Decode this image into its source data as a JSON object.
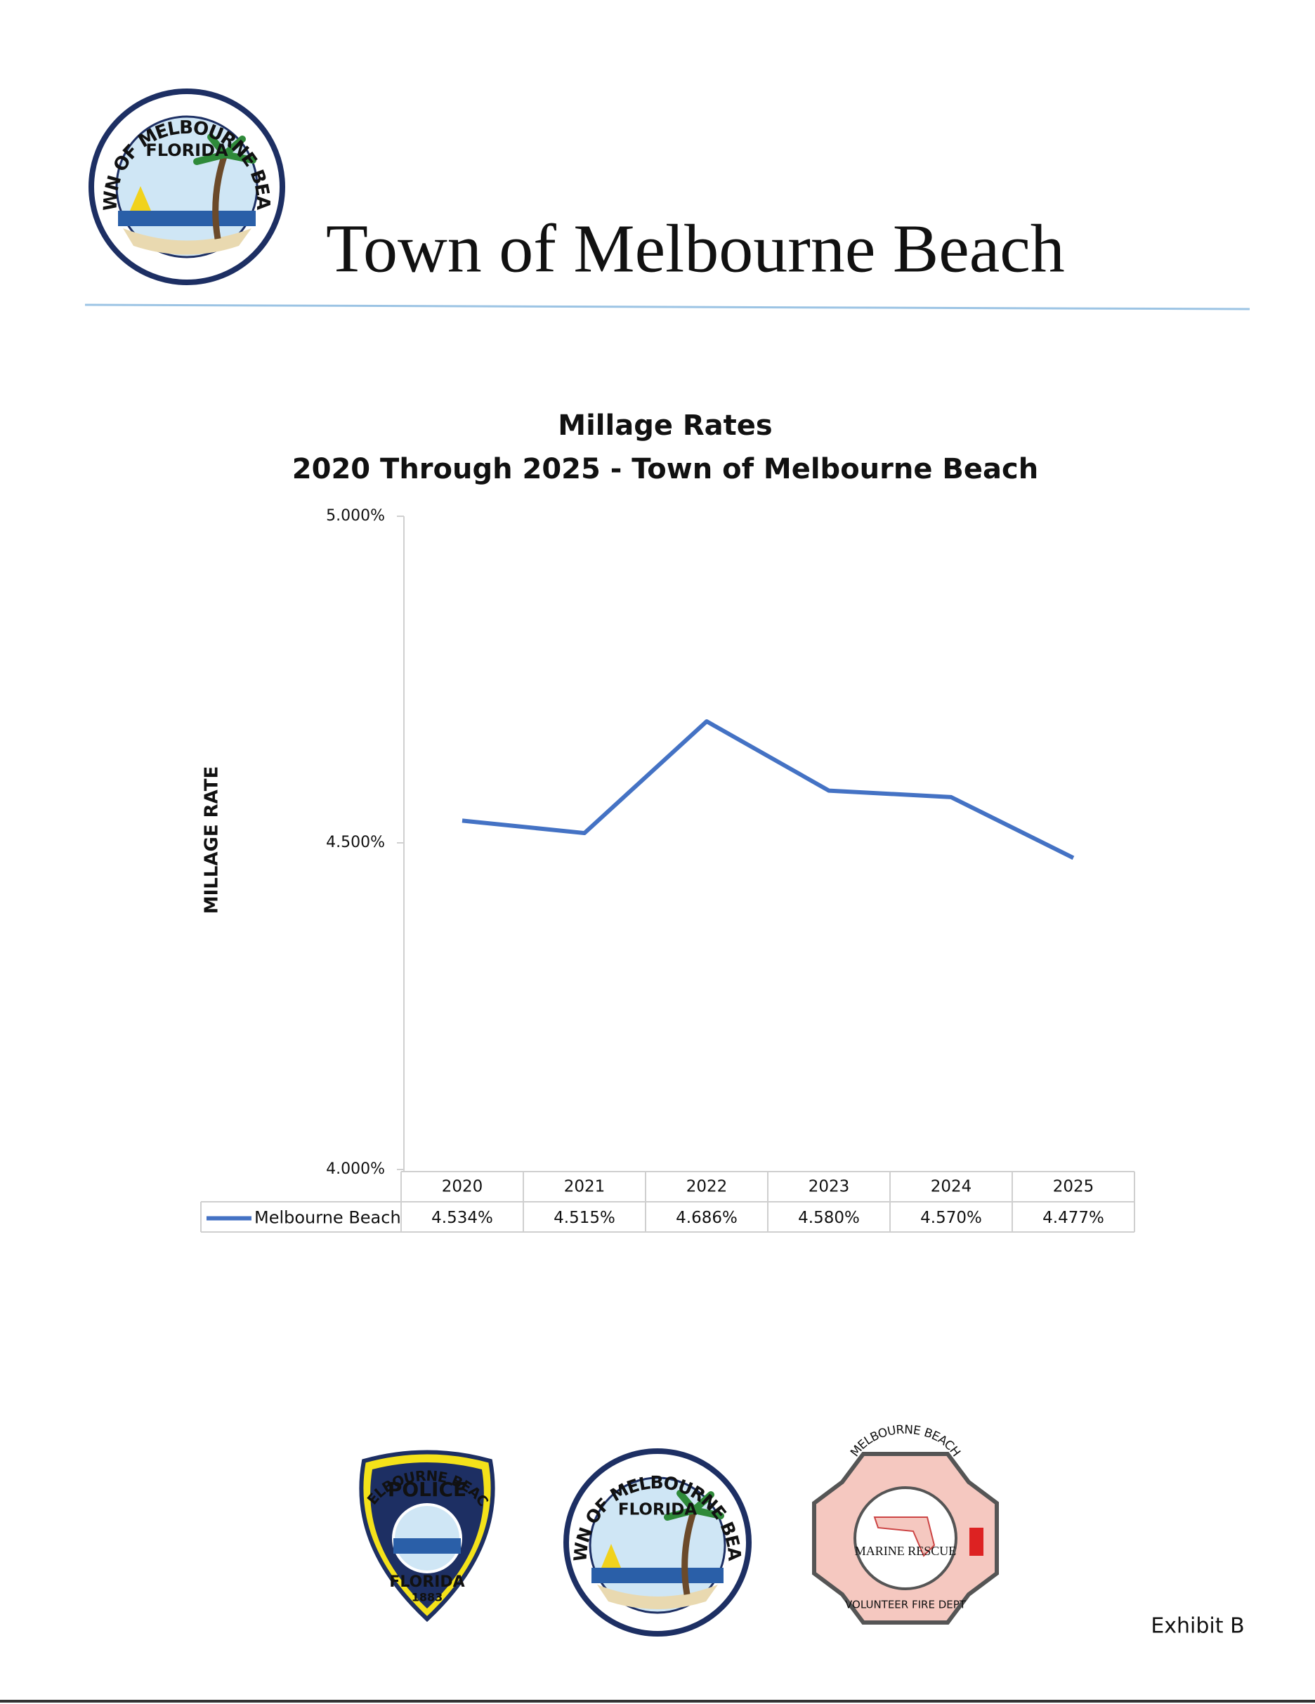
{
  "header": {
    "title": "Town of Melbourne Beach"
  },
  "town_logo": {
    "ring": "TOWN OF MELBOURNE BEACH",
    "state": "FLORIDA"
  },
  "police_logo": {
    "top": "MELBOURNE BEACH",
    "middle": "POLICE",
    "bottom": "FLORIDA",
    "year": "1883"
  },
  "fire_logo": {
    "top": "MELBOURNE BEACH",
    "middle": "MARINE RESCUE",
    "bottom": "VOLUNTEER FIRE DEPT"
  },
  "footer": {
    "exhibit": "Exhibit B"
  },
  "chart_data": {
    "type": "line",
    "title": "Millage Rates",
    "subtitle": "2020 Through 2025 - Town of Melbourne Beach",
    "y_label": "MILLAGE RATE",
    "categories": [
      "2020",
      "2021",
      "2022",
      "2023",
      "2024",
      "2025"
    ],
    "series": [
      {
        "name": "Melbourne Beach",
        "color": "#4472c4",
        "values": [
          4.534,
          4.515,
          4.686,
          4.58,
          4.57,
          4.477
        ],
        "value_labels": [
          "4.534%",
          "4.515%",
          "4.686%",
          "4.580%",
          "4.570%",
          "4.477%"
        ]
      }
    ],
    "ylim": [
      4,
      5
    ],
    "yticks": [
      {
        "value": 4,
        "label": "4.000%"
      },
      {
        "value": 4.5,
        "label": "4.500%"
      },
      {
        "value": 5,
        "label": "5.000%"
      }
    ],
    "grid": false
  }
}
